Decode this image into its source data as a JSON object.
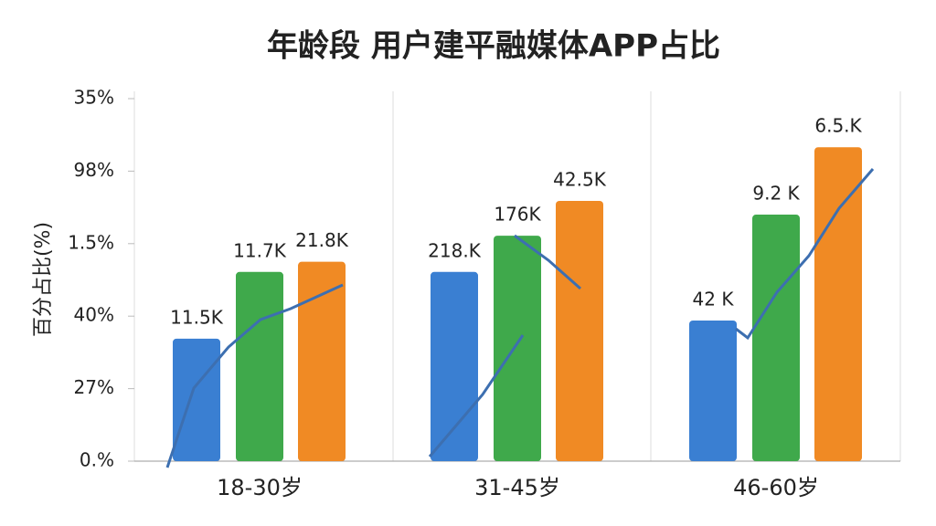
{
  "chart_data": {
    "type": "bar",
    "title": "年龄段 用户建平融媒体APP占比",
    "y_label": "百分占比(%)",
    "categories": [
      "18-30岁",
      "31-45岁",
      "46-60岁"
    ],
    "series": [
      {
        "color": "#3a7fd2",
        "values": [
          1.69,
          2.61,
          1.94
        ]
      },
      {
        "color": "#3fa94b",
        "values": [
          2.61,
          3.11,
          3.4
        ]
      },
      {
        "color": "#f08a24",
        "values": [
          2.75,
          3.59,
          4.33
        ]
      }
    ],
    "annotations": [
      [
        "11.5K",
        "218.K",
        "42 K"
      ],
      [
        "11.7K",
        "176K",
        "9.2 K"
      ],
      [
        "21.8K",
        "42.5K",
        "6.5.K"
      ]
    ],
    "ylim": [
      0,
      5
    ],
    "yticks": [
      {
        "value": 0,
        "label": "0.%"
      },
      {
        "value": 1,
        "label": "27%"
      },
      {
        "value": 2,
        "label": "40%"
      },
      {
        "value": 3,
        "label": "1.5%"
      },
      {
        "value": 4,
        "label": "98%"
      },
      {
        "value": 5,
        "label": "35%"
      }
    ],
    "grid": false
  }
}
